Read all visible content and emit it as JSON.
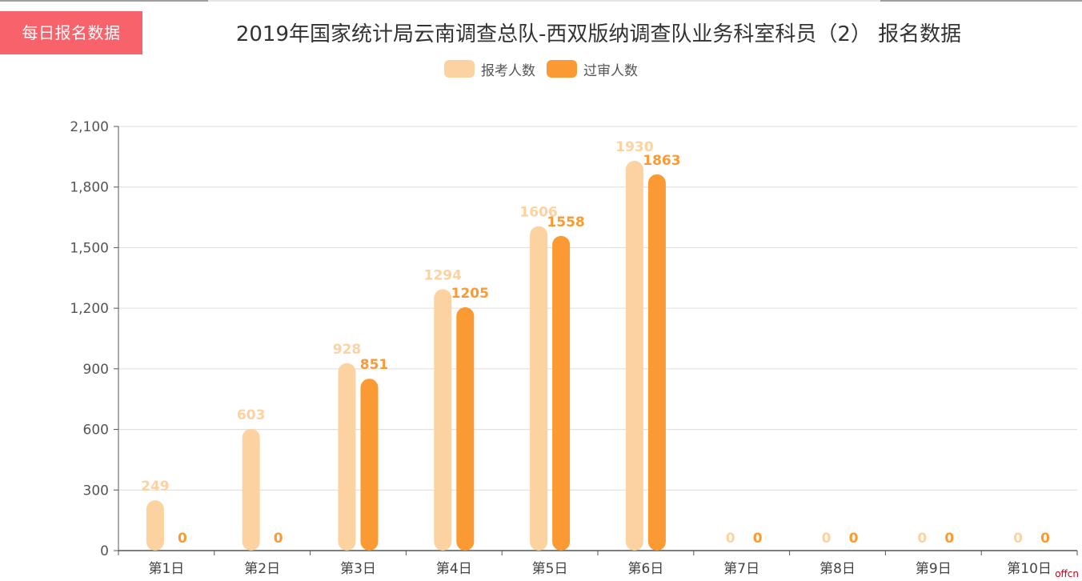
{
  "header": {
    "badge_label": "每日报名数据"
  },
  "watermark": "offcn",
  "colors": {
    "applied": "#fdd2a1",
    "approved": "#fb9a32",
    "badge": "#f8626a"
  },
  "chart_data": {
    "type": "bar",
    "title": "2019年国家统计局云南调查总队-西双版纳调查队业务科室科员（2） 报名数据",
    "categories": [
      "第1日",
      "第2日",
      "第3日",
      "第4日",
      "第5日",
      "第6日",
      "第7日",
      "第8日",
      "第9日",
      "第10日"
    ],
    "series": [
      {
        "name": "报考人数",
        "values": [
          249,
          603,
          928,
          1294,
          1606,
          1930,
          0,
          0,
          0,
          0
        ]
      },
      {
        "name": "过审人数",
        "values": [
          0,
          0,
          851,
          1205,
          1558,
          1863,
          0,
          0,
          0,
          0
        ]
      }
    ],
    "ylim": [
      0,
      2100
    ],
    "yticks": [
      0,
      300,
      600,
      900,
      1200,
      1500,
      1800,
      2100
    ],
    "ytick_labels": [
      "0",
      "300",
      "600",
      "900",
      "1,200",
      "1,500",
      "1,800",
      "2,100"
    ],
    "grid": true,
    "legend": "top-center"
  }
}
